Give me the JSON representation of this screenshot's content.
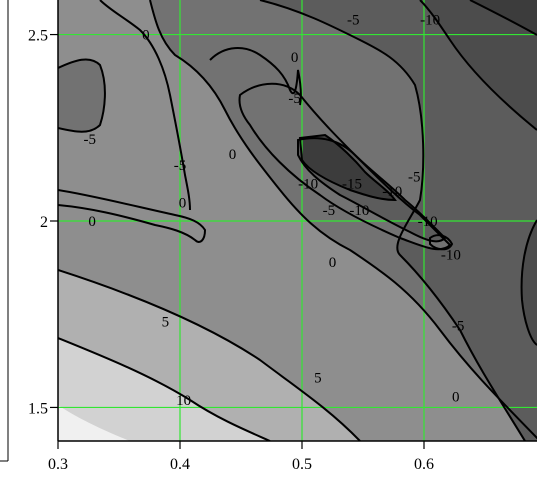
{
  "chart_data": {
    "type": "contour",
    "xlim": [
      0.3,
      0.7
    ],
    "ylim": [
      1.41,
      2.6
    ],
    "x_ticks": [
      {
        "value": 0.3,
        "label": "0.3"
      },
      {
        "value": 0.4,
        "label": "0.4"
      },
      {
        "value": 0.5,
        "label": "0.5"
      },
      {
        "value": 0.6,
        "label": "0.6"
      }
    ],
    "y_ticks": [
      {
        "value": 1.5,
        "label": "1.5"
      },
      {
        "value": 2.0,
        "label": "2"
      },
      {
        "value": 2.5,
        "label": "2.5"
      }
    ],
    "grid": true,
    "grid_color": "#33e633",
    "contour_levels": [
      -15,
      -10,
      -5,
      0,
      5,
      10
    ],
    "fill_colors": {
      "below_-15": "#3c3c3c",
      "-15_to_-10": "#4c4c4c",
      "-10_to_-5": "#5c5c5c",
      "-5_to_0": "#727272",
      "0_to_5": "#8e8e8e",
      "5_to_10": "#b0b0b0",
      "10_to_15": "#d2d2d2",
      "above_15": "#f0f0f0"
    },
    "contour_labels": [
      {
        "text": "0",
        "x": 0.372,
        "y": 2.5
      },
      {
        "text": "-5",
        "x": 0.542,
        "y": 2.54
      },
      {
        "text": "-10",
        "x": 0.605,
        "y": 2.54
      },
      {
        "text": "0",
        "x": 0.494,
        "y": 2.44
      },
      {
        "text": "-5",
        "x": 0.494,
        "y": 2.33
      },
      {
        "text": "-5",
        "x": 0.326,
        "y": 2.22
      },
      {
        "text": "-5",
        "x": 0.4,
        "y": 2.15
      },
      {
        "text": "0",
        "x": 0.443,
        "y": 2.18
      },
      {
        "text": "-15",
        "x": 0.541,
        "y": 2.1
      },
      {
        "text": "-10",
        "x": 0.505,
        "y": 2.1
      },
      {
        "text": "-10",
        "x": 0.574,
        "y": 2.08
      },
      {
        "text": "-5",
        "x": 0.592,
        "y": 2.12
      },
      {
        "text": "-5",
        "x": 0.522,
        "y": 2.03
      },
      {
        "text": "-10",
        "x": 0.547,
        "y": 2.03
      },
      {
        "text": "-10",
        "x": 0.603,
        "y": 2.0
      },
      {
        "text": "-10",
        "x": 0.622,
        "y": 1.91
      },
      {
        "text": "0",
        "x": 0.402,
        "y": 2.05
      },
      {
        "text": "0",
        "x": 0.328,
        "y": 2.0
      },
      {
        "text": "0",
        "x": 0.525,
        "y": 1.89
      },
      {
        "text": "-5",
        "x": 0.628,
        "y": 1.72
      },
      {
        "text": "5",
        "x": 0.388,
        "y": 1.73
      },
      {
        "text": "5",
        "x": 0.513,
        "y": 1.58
      },
      {
        "text": "0",
        "x": 0.626,
        "y": 1.53
      },
      {
        "text": "10",
        "x": 0.403,
        "y": 1.52
      }
    ]
  }
}
